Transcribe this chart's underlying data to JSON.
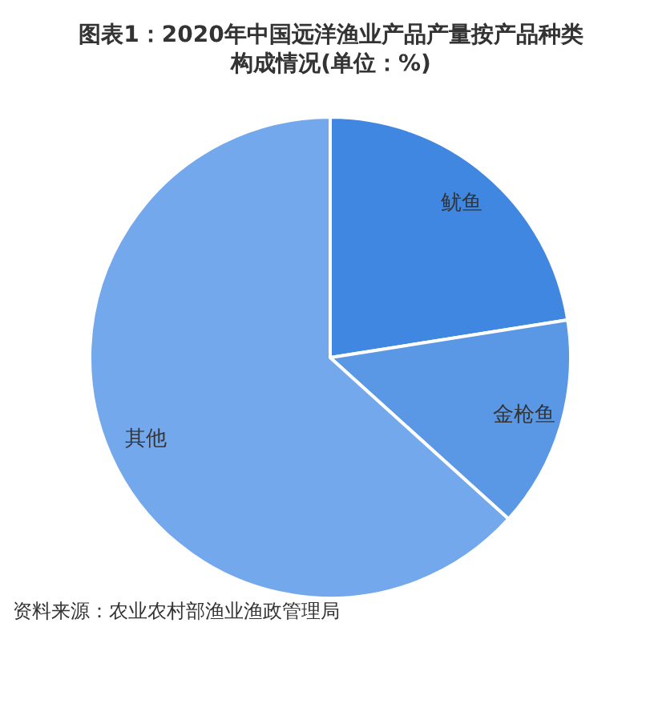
{
  "chart_data": {
    "type": "pie",
    "title": "图表1：2020年中国远洋渔业产品产量按产品种类构成情况(单位：%)",
    "categories": [
      "鱿鱼",
      "金枪鱼",
      "其他"
    ],
    "values": [
      22.5,
      14.2,
      63.3
    ],
    "colors": [
      "#3f87e0",
      "#5a98e6",
      "#74a8ec"
    ],
    "annotations": [
      "资料来源：农业农村部渔业渔政管理局"
    ]
  }
}
